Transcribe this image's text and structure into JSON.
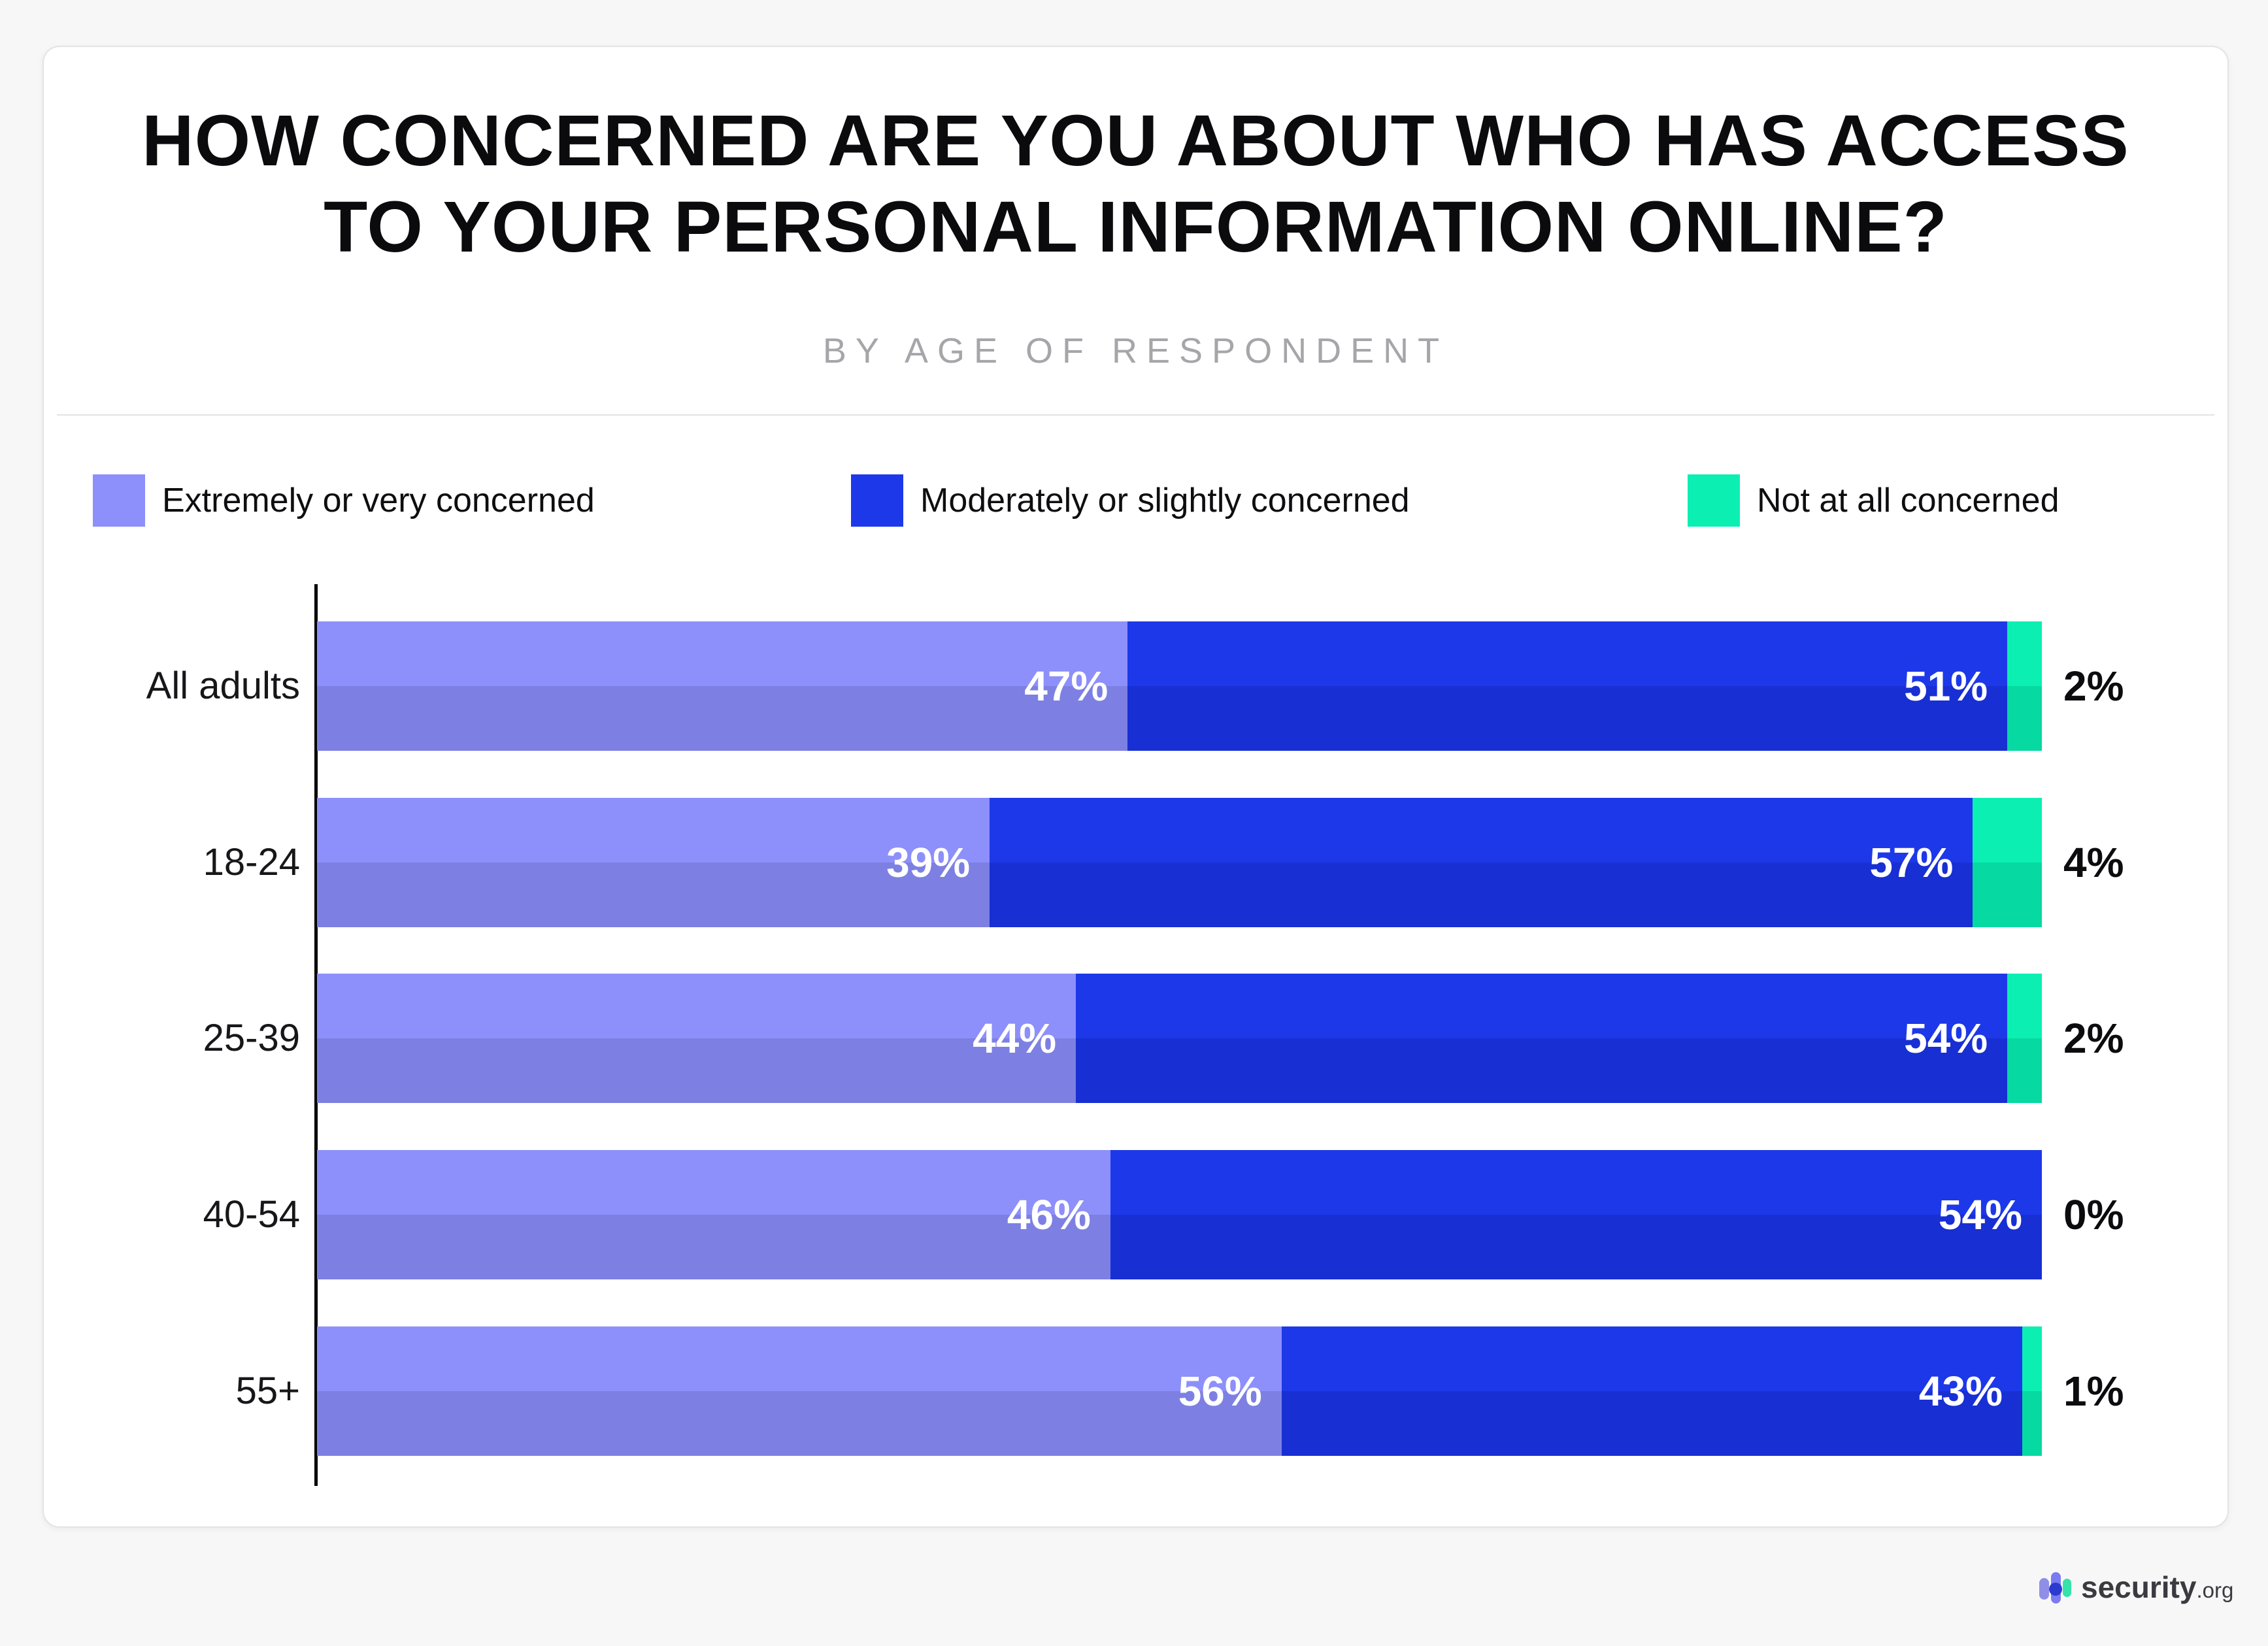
{
  "header": {
    "title_line1": "HOW CONCERNED ARE YOU ABOUT WHO HAS ACCESS",
    "title_line2": "TO YOUR PERSONAL INFORMATION ONLINE?",
    "subtitle": "BY AGE OF RESPONDENT"
  },
  "chart_data": {
    "type": "bar",
    "orientation": "horizontal-stacked",
    "title": "How concerned are you about who has access to your personal information online?",
    "subtitle": "By age of respondent",
    "categories": [
      "All adults",
      "18-24",
      "25-39",
      "40-54",
      "55+"
    ],
    "series": [
      {
        "key": "extremely",
        "name": "Extremely or very concerned",
        "values": [
          47,
          39,
          44,
          46,
          56
        ],
        "color_top": "#8D8FFA",
        "color_bottom": "#7D80E2",
        "label_placement": "inside"
      },
      {
        "key": "moderately",
        "name": "Moderately or slightly concerned",
        "values": [
          51,
          57,
          54,
          54,
          43
        ],
        "color_top": "#1D38E9",
        "color_bottom": "#182FD3",
        "label_placement": "inside"
      },
      {
        "key": "notatall",
        "name": "Not at all concerned",
        "values": [
          2,
          4,
          2,
          0,
          1
        ],
        "color_top": "#0CEFB3",
        "color_bottom": "#06D9A1",
        "label_placement": "outside"
      }
    ],
    "value_suffix": "%",
    "xlim": [
      0,
      100
    ],
    "grid": false,
    "legend_position": "top",
    "inside_label_color": "#ffffff",
    "outside_label_color": "#0c0c0e"
  },
  "footer": {
    "brand": "security",
    "brand_suffix": ".org",
    "logo": {
      "pills": [
        "#8F8FE8",
        "#7B7BF2",
        "#35E2A9"
      ],
      "dot": "#2D3AD0"
    }
  }
}
